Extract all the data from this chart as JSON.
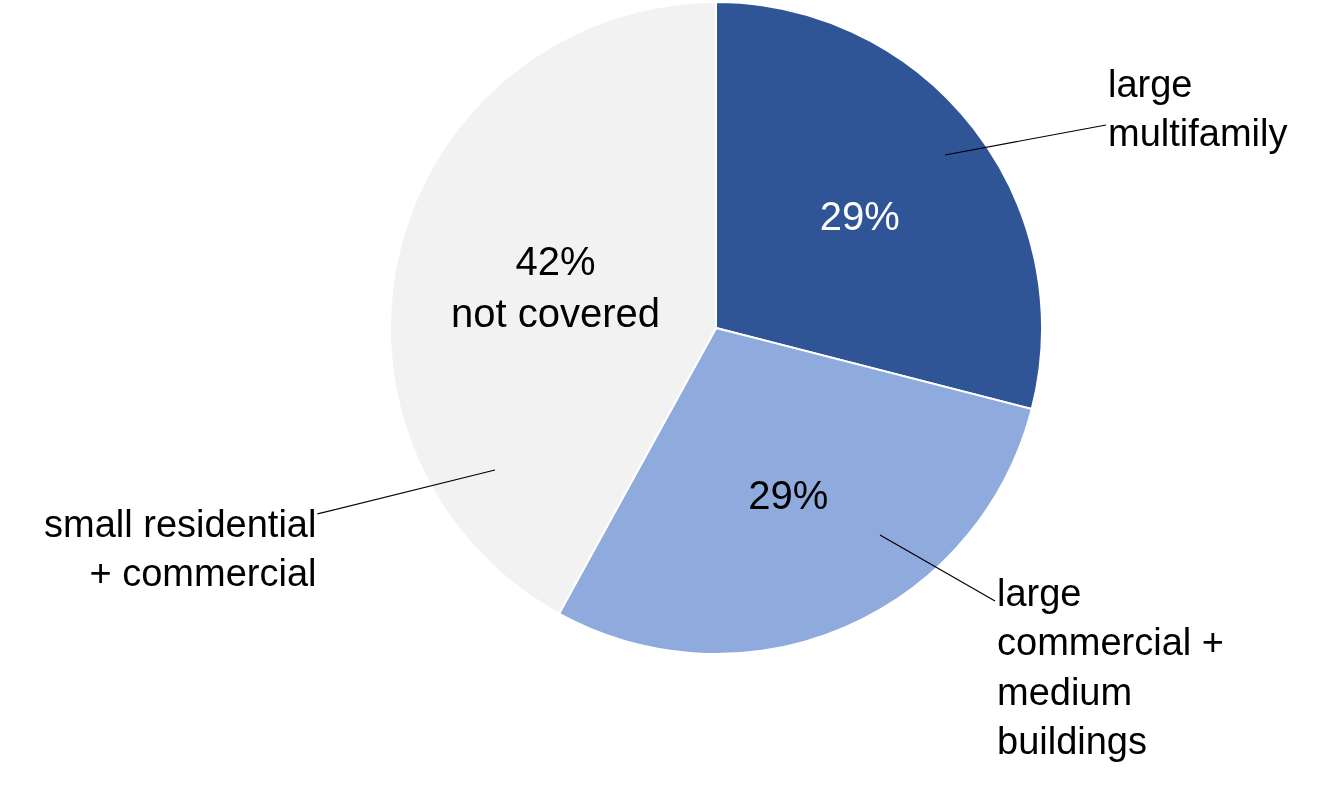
{
  "chart_data": {
    "type": "pie",
    "categories": [
      "large\nmultifamily",
      "large\ncommercial +\nmedium\nbuildings",
      "small residential\n+ commercial"
    ],
    "values": [
      29,
      29,
      42
    ],
    "colors": [
      "#2f5597",
      "#8faadc",
      "#f2f2f2"
    ],
    "value_labels": [
      "29%",
      "29%",
      "42%\nnot covered"
    ]
  }
}
